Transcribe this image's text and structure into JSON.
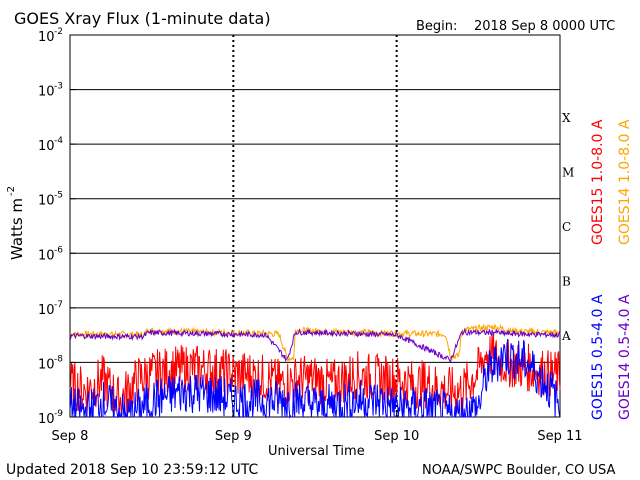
{
  "header": {
    "title": "GOES Xray Flux (1-minute data)",
    "begin_label": "Begin:",
    "begin_value": "2018 Sep 8 0000 UTC"
  },
  "footer": {
    "updated": "Updated 2018 Sep 10 23:59:12 UTC",
    "credit": "NOAA/SWPC Boulder, CO USA"
  },
  "colors": {
    "goes15_long": "#ff0000",
    "goes14_long": "#ffa500",
    "goes15_short": "#0000ff",
    "goes14_short": "#6a00c8",
    "axis": "#000000"
  },
  "chart_data": {
    "type": "line",
    "title": "GOES Xray Flux (1-minute data)",
    "xlabel": "Universal Time",
    "ylabel_base": "Watts m",
    "ylabel_sup": "-2",
    "y_scale": "log",
    "ylim": [
      1e-09,
      0.01
    ],
    "xlim": [
      "2018-09-08",
      "2018-09-11"
    ],
    "grid": true,
    "x_ticks": [
      "Sep 8",
      "Sep 9",
      "Sep 10",
      "Sep 11"
    ],
    "y_ticks": [
      {
        "value": 1e-09,
        "mant": "10",
        "exp": "-9"
      },
      {
        "value": 1e-08,
        "mant": "10",
        "exp": "-8"
      },
      {
        "value": 1e-07,
        "mant": "10",
        "exp": "-7"
      },
      {
        "value": 1e-06,
        "mant": "10",
        "exp": "-6"
      },
      {
        "value": 1e-05,
        "mant": "10",
        "exp": "-5"
      },
      {
        "value": 0.0001,
        "mant": "10",
        "exp": "-4"
      },
      {
        "value": 0.001,
        "mant": "10",
        "exp": "-3"
      },
      {
        "value": 0.01,
        "mant": "10",
        "exp": "-2"
      }
    ],
    "flare_classes": [
      {
        "label": "A",
        "value": 1e-08
      },
      {
        "label": "B",
        "value": 1e-07
      },
      {
        "label": "C",
        "value": 1e-06
      },
      {
        "label": "M",
        "value": 1e-05
      },
      {
        "label": "X",
        "value": 0.0001
      }
    ],
    "legend_placement": "right",
    "legend": [
      {
        "name": "GOES15 1.0-8.0 A",
        "color": "#ff0000"
      },
      {
        "name": "GOES14 1.0-8.0 A",
        "color": "#ffa500"
      },
      {
        "name": "GOES15 0.5-4.0 A",
        "color": "#0000ff"
      },
      {
        "name": "GOES14 0.5-4.0 A",
        "color": "#6a00c8"
      }
    ],
    "series": [
      {
        "name": "GOES14 1.0-8.0 A",
        "color": "#ffa500",
        "x_days": [
          0.0,
          0.2,
          0.45,
          0.48,
          0.55,
          0.8,
          1.0,
          1.15,
          1.2,
          1.28,
          1.33,
          1.37,
          1.38,
          1.45,
          1.7,
          2.0,
          2.3,
          2.33,
          2.38,
          2.4,
          2.6,
          2.7,
          2.85,
          3.0
        ],
        "values": [
          3.3e-08,
          3.3e-08,
          3.2e-08,
          3.9e-08,
          3.8e-08,
          3.6e-08,
          3.5e-08,
          3.4e-08,
          3.4e-08,
          3.3e-08,
          1.2e-08,
          1.2e-08,
          4e-08,
          3.8e-08,
          3.6e-08,
          3.4e-08,
          3.3e-08,
          1.3e-08,
          1.3e-08,
          3.9e-08,
          4.5e-08,
          3.8e-08,
          3.6e-08,
          3.5e-08
        ]
      },
      {
        "name": "GOES15 1.0-8.0 A",
        "color": "#ff0000",
        "x_days": [
          0.0,
          0.1,
          0.2,
          0.3,
          0.42,
          0.5,
          0.6,
          0.75,
          0.9,
          1.0,
          1.1,
          1.2,
          1.3,
          1.4,
          1.5,
          1.6,
          1.75,
          1.9,
          2.0,
          2.1,
          2.2,
          2.3,
          2.4,
          2.5,
          2.55,
          2.65,
          2.8,
          2.95,
          3.0
        ],
        "values": [
          4e-09,
          3e-09,
          5e-09,
          2e-09,
          5e-09,
          6e-09,
          7e-09,
          8e-09,
          7e-09,
          6e-09,
          6e-09,
          5e-09,
          4e-09,
          5e-09,
          5e-09,
          4e-09,
          6e-09,
          5e-09,
          5e-09,
          4e-09,
          4e-09,
          3e-09,
          3e-09,
          7e-09,
          1.5e-08,
          1e-08,
          8e-09,
          6e-09,
          6e-09
        ]
      },
      {
        "name": "GOES14 0.5-4.0 A",
        "color": "#6a00c8",
        "x_days": [
          0.0,
          0.2,
          0.45,
          0.48,
          0.8,
          1.2,
          1.33,
          1.38,
          1.7,
          2.0,
          2.33,
          2.4,
          2.55,
          2.6,
          2.65,
          2.8,
          3.0
        ],
        "values": [
          3.1e-08,
          3e-08,
          3e-08,
          3.5e-08,
          3.4e-08,
          3.2e-08,
          1.1e-08,
          3.6e-08,
          3.4e-08,
          3.2e-08,
          1.1e-08,
          3.6e-08,
          3.5e-08,
          3.6e-08,
          3.4e-08,
          3.3e-08,
          3.2e-08
        ]
      },
      {
        "name": "GOES15 0.5-4.0 A",
        "color": "#0000ff",
        "x_days": [
          0.0,
          0.1,
          0.2,
          0.35,
          0.5,
          0.7,
          0.9,
          1.0,
          1.2,
          1.4,
          1.55,
          1.7,
          1.9,
          2.0,
          2.2,
          2.35,
          2.5,
          2.55,
          2.65,
          2.8,
          2.95,
          3.0
        ],
        "values": [
          1.5e-09,
          1.2e-09,
          2e-09,
          1e-09,
          2e-09,
          3e-09,
          2.5e-09,
          2e-09,
          2e-09,
          2e-09,
          1.5e-09,
          2e-09,
          2e-09,
          1.5e-09,
          1.5e-09,
          1e-09,
          1.5e-09,
          6e-09,
          1.4e-08,
          1e-08,
          3e-09,
          1.5e-09
        ]
      }
    ]
  }
}
